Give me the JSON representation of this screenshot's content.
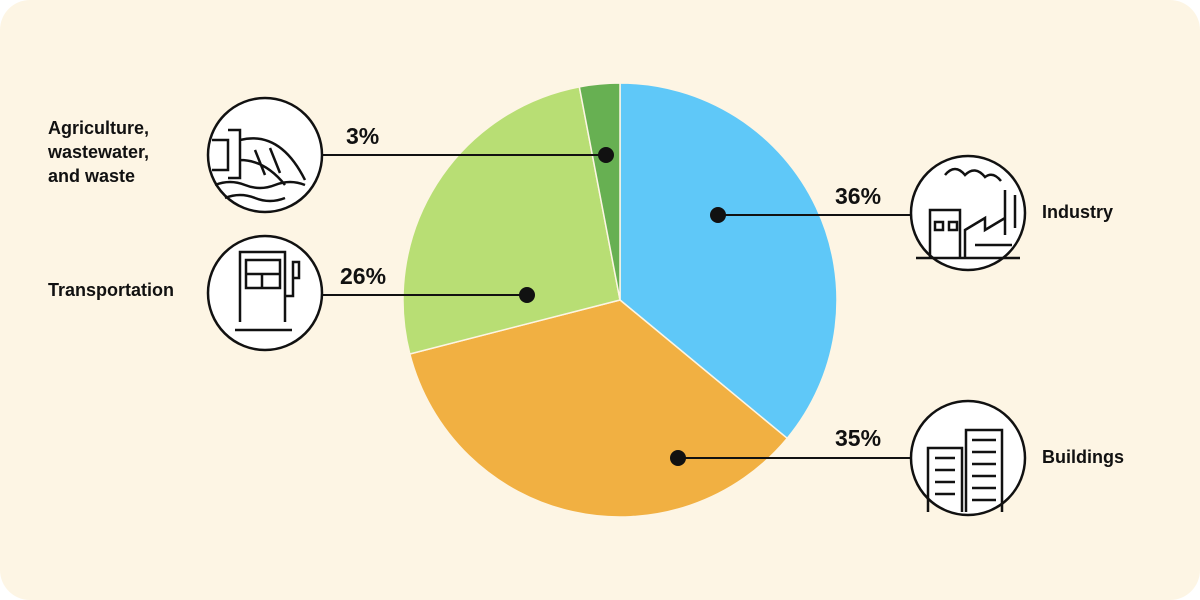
{
  "chart_data": {
    "type": "pie",
    "categories": [
      "Industry",
      "Buildings",
      "Transportation",
      "Agriculture, wastewater, and waste"
    ],
    "values": [
      36,
      35,
      26,
      3
    ],
    "value_labels": [
      "36%",
      "35%",
      "26%",
      "3%"
    ],
    "colors": [
      "#5fc8f8",
      "#f1b042",
      "#b8de74",
      "#67b052"
    ]
  }
}
